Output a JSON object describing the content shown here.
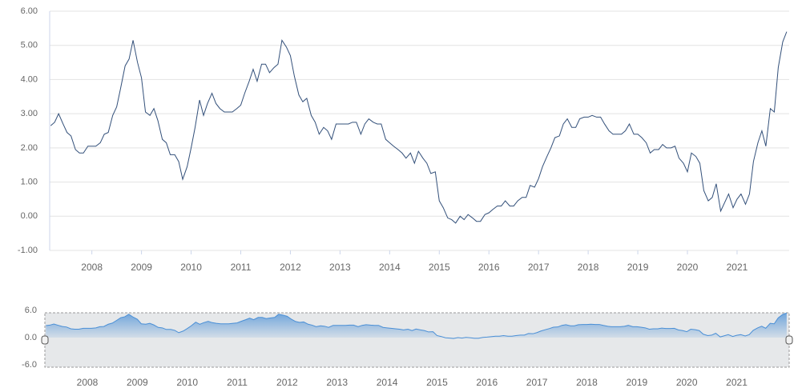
{
  "chart_data": {
    "type": "line",
    "line_color": "#33507a",
    "xlim": [
      2007.15,
      2022.05
    ],
    "xticks": [
      2008,
      2009,
      2010,
      2011,
      2012,
      2013,
      2014,
      2015,
      2016,
      2017,
      2018,
      2019,
      2020,
      2021
    ],
    "ylim": [
      -1,
      6
    ],
    "yticks": [
      {
        "value": 6,
        "label": "6.00"
      },
      {
        "value": 5,
        "label": "5.00"
      },
      {
        "value": 4,
        "label": "4.00"
      },
      {
        "value": 3,
        "label": "3.00"
      },
      {
        "value": 2,
        "label": "2.00"
      },
      {
        "value": 1,
        "label": "1.00"
      },
      {
        "value": 0,
        "label": "0.00"
      },
      {
        "value": -1,
        "label": "-1.00"
      }
    ],
    "grid": true,
    "x": [
      2007.17,
      2007.25,
      2007.33,
      2007.42,
      2007.5,
      2007.58,
      2007.67,
      2007.75,
      2007.83,
      2007.92,
      2008,
      2008.08,
      2008.17,
      2008.25,
      2008.33,
      2008.42,
      2008.5,
      2008.58,
      2008.67,
      2008.75,
      2008.83,
      2008.92,
      2009,
      2009.08,
      2009.17,
      2009.25,
      2009.33,
      2009.42,
      2009.5,
      2009.58,
      2009.67,
      2009.75,
      2009.83,
      2009.92,
      2010,
      2010.08,
      2010.17,
      2010.25,
      2010.33,
      2010.42,
      2010.5,
      2010.58,
      2010.67,
      2010.75,
      2010.83,
      2010.92,
      2011,
      2011.08,
      2011.17,
      2011.25,
      2011.33,
      2011.42,
      2011.5,
      2011.58,
      2011.67,
      2011.75,
      2011.83,
      2011.92,
      2012,
      2012.08,
      2012.17,
      2012.25,
      2012.33,
      2012.42,
      2012.5,
      2012.58,
      2012.67,
      2012.75,
      2012.83,
      2012.92,
      2013,
      2013.08,
      2013.17,
      2013.25,
      2013.33,
      2013.42,
      2013.5,
      2013.58,
      2013.67,
      2013.75,
      2013.83,
      2013.92,
      2014,
      2014.08,
      2014.17,
      2014.25,
      2014.33,
      2014.42,
      2014.5,
      2014.58,
      2014.67,
      2014.75,
      2014.83,
      2014.92,
      2015,
      2015.08,
      2015.17,
      2015.25,
      2015.33,
      2015.42,
      2015.5,
      2015.58,
      2015.67,
      2015.75,
      2015.83,
      2015.92,
      2016,
      2016.08,
      2016.17,
      2016.25,
      2016.33,
      2016.42,
      2016.5,
      2016.58,
      2016.67,
      2016.75,
      2016.83,
      2016.92,
      2017,
      2017.08,
      2017.17,
      2017.25,
      2017.33,
      2017.42,
      2017.5,
      2017.58,
      2017.67,
      2017.75,
      2017.83,
      2017.92,
      2018,
      2018.08,
      2018.17,
      2018.25,
      2018.33,
      2018.42,
      2018.5,
      2018.58,
      2018.67,
      2018.75,
      2018.83,
      2018.92,
      2019,
      2019.08,
      2019.17,
      2019.25,
      2019.33,
      2019.42,
      2019.5,
      2019.58,
      2019.67,
      2019.75,
      2019.83,
      2019.92,
      2020,
      2020.08,
      2020.17,
      2020.25,
      2020.33,
      2020.42,
      2020.5,
      2020.58,
      2020.67,
      2020.75,
      2020.83,
      2020.92,
      2021,
      2021.08,
      2021.17,
      2021.25,
      2021.33,
      2021.42,
      2021.5,
      2021.58,
      2021.67,
      2021.75,
      2021.83,
      2021.92,
      2022
    ],
    "values": [
      2.65,
      2.75,
      3.0,
      2.7,
      2.45,
      2.35,
      1.95,
      1.85,
      1.85,
      2.05,
      2.05,
      2.05,
      2.15,
      2.4,
      2.45,
      2.95,
      3.2,
      3.75,
      4.4,
      4.6,
      5.15,
      4.5,
      4.05,
      3.05,
      2.95,
      3.15,
      2.8,
      2.25,
      2.15,
      1.8,
      1.8,
      1.6,
      1.08,
      1.45,
      2.0,
      2.6,
      3.4,
      2.95,
      3.3,
      3.6,
      3.3,
      3.15,
      3.05,
      3.05,
      3.05,
      3.15,
      3.25,
      3.6,
      3.95,
      4.3,
      3.95,
      4.45,
      4.45,
      4.2,
      4.35,
      4.45,
      5.15,
      4.95,
      4.7,
      4.1,
      3.55,
      3.35,
      3.45,
      2.95,
      2.75,
      2.4,
      2.6,
      2.5,
      2.25,
      2.7,
      2.7,
      2.7,
      2.7,
      2.75,
      2.75,
      2.4,
      2.7,
      2.85,
      2.75,
      2.7,
      2.7,
      2.25,
      2.15,
      2.05,
      1.95,
      1.85,
      1.7,
      1.85,
      1.55,
      1.9,
      1.7,
      1.55,
      1.25,
      1.3,
      0.45,
      0.25,
      -0.05,
      -0.1,
      -0.2,
      0.0,
      -0.1,
      0.05,
      -0.05,
      -0.15,
      -0.15,
      0.05,
      0.1,
      0.2,
      0.3,
      0.3,
      0.45,
      0.3,
      0.3,
      0.45,
      0.55,
      0.55,
      0.9,
      0.85,
      1.1,
      1.45,
      1.75,
      2.0,
      2.3,
      2.35,
      2.7,
      2.85,
      2.6,
      2.6,
      2.85,
      2.9,
      2.9,
      2.95,
      2.9,
      2.9,
      2.7,
      2.5,
      2.4,
      2.4,
      2.4,
      2.5,
      2.7,
      2.4,
      2.4,
      2.3,
      2.15,
      1.85,
      1.95,
      1.95,
      2.1,
      2.0,
      2.0,
      2.05,
      1.7,
      1.55,
      1.3,
      1.85,
      1.75,
      1.55,
      0.75,
      0.45,
      0.55,
      0.95,
      0.15,
      0.4,
      0.65,
      0.25,
      0.5,
      0.65,
      0.35,
      0.65,
      1.6,
      2.15,
      2.5,
      2.05,
      3.15,
      3.05,
      4.35,
      5.1,
      5.4
    ],
    "navigator": {
      "ylim": [
        -6,
        6
      ],
      "yticks": [
        {
          "value": 6,
          "label": "6.0"
        },
        {
          "value": 0,
          "label": "0.0"
        },
        {
          "value": -6,
          "label": "-6.0"
        }
      ],
      "line_color": "#4a8fd6"
    }
  }
}
